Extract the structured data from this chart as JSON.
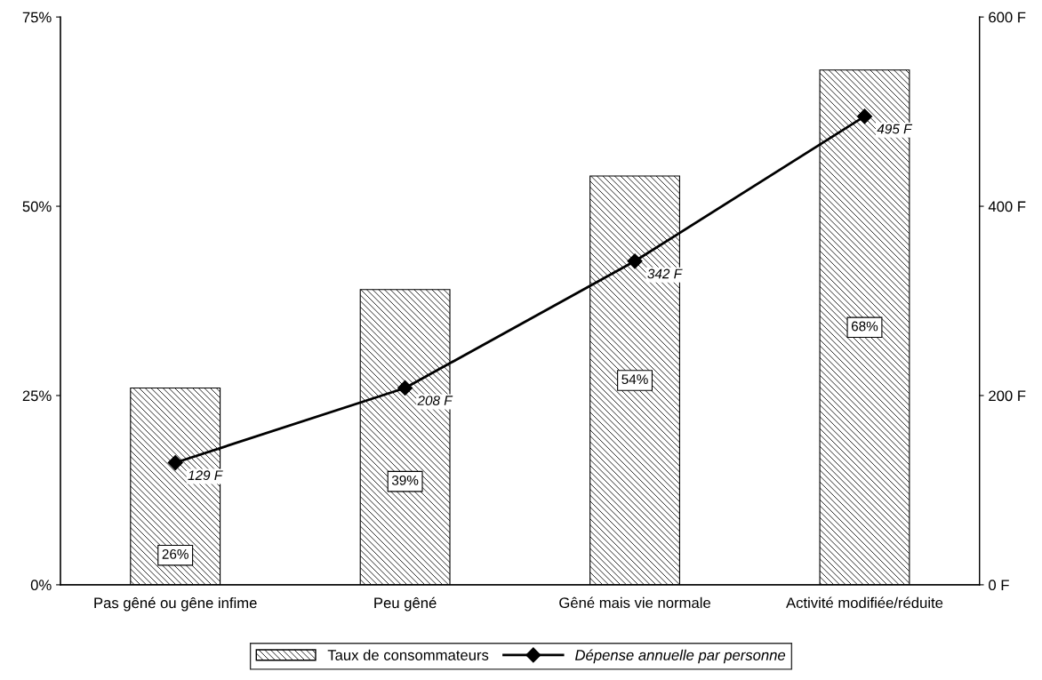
{
  "chart_data": {
    "type": "bar",
    "categories": [
      "Pas gêné ou gêne infime",
      "Peu gêné",
      "Gêné mais vie normale",
      "Activité modifiée/réduite"
    ],
    "series": [
      {
        "name": "Taux de consommateurs",
        "color": "#000000",
        "values": [
          26,
          39,
          54,
          68
        ],
        "value_labels": [
          "26%",
          "39%",
          "54%",
          "68%"
        ]
      },
      {
        "name": "Dépense annuelle par personne",
        "type": "line",
        "axis": "y2",
        "color": "#000000",
        "marker": "diamond",
        "line_style": "solid",
        "values": [
          129,
          208,
          342,
          495
        ],
        "value_labels": [
          "129 F",
          "208 F",
          "342 F",
          "495 F"
        ]
      }
    ],
    "ylim": [
      0,
      75
    ],
    "yticks": [
      {
        "value": 0,
        "label": "0%"
      },
      {
        "value": 25,
        "label": "25%"
      },
      {
        "value": 50,
        "label": "50%"
      },
      {
        "value": 75,
        "label": "75%"
      }
    ],
    "y2lim": [
      0,
      600
    ],
    "y2ticks": [
      {
        "value": 0,
        "label": "0 F"
      },
      {
        "value": 200,
        "label": "200 F"
      },
      {
        "value": 400,
        "label": "400 F"
      },
      {
        "value": 600,
        "label": "600 F"
      }
    ],
    "grid": false,
    "legend": "bottom"
  }
}
